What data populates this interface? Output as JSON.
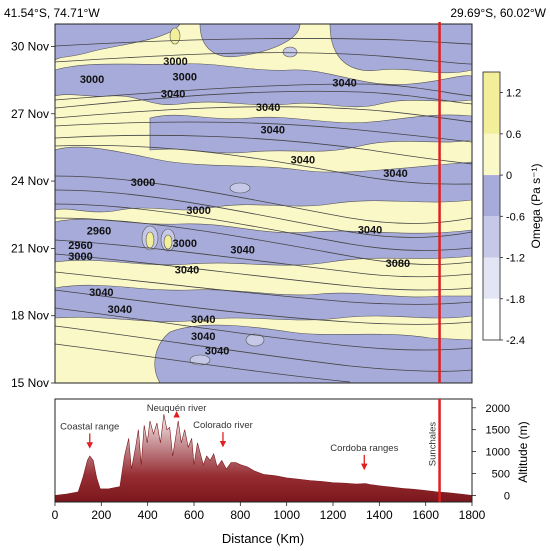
{
  "chart_data": [
    {
      "type": "heatmap",
      "corner_left_label": "41.54°S, 74.71°W",
      "corner_right_label": "29.69°S, 60.02°W",
      "x_range_km": [
        0,
        1800
      ],
      "y_ticks": [
        "15 Nov",
        "18 Nov",
        "21 Nov",
        "24 Nov",
        "27 Nov",
        "30 Nov"
      ],
      "y_range_days_nov": [
        15,
        31
      ],
      "colorbar": {
        "label": "Omega (Pa s⁻¹)",
        "ticks": [
          "1.2",
          "0.6",
          "0",
          "-0.6",
          "-1.2",
          "-1.8",
          "-2.4"
        ],
        "tick_values": [
          1.2,
          0.6,
          0,
          -0.6,
          -1.2,
          -1.8,
          -2.4
        ],
        "bands": [
          {
            "from": 0.6,
            "to": 1.5,
            "color": "#f2ee9a"
          },
          {
            "from": 0,
            "to": 0.6,
            "color": "#fbf8c8"
          },
          {
            "from": -0.6,
            "to": 0,
            "color": "#a7abd9"
          },
          {
            "from": -1.2,
            "to": -0.6,
            "color": "#c6c8e7"
          },
          {
            "from": -1.8,
            "to": -1.2,
            "color": "#e4e5f4"
          },
          {
            "from": -2.4,
            "to": -1.8,
            "color": "#ffffff"
          }
        ]
      },
      "colors": {
        "positive": "#fbf8c8",
        "negative": "#a7abd9",
        "strong_negative": "#c6c8e7",
        "transect": "#e02020",
        "contour": "#444444"
      },
      "contour_labels": [
        {
          "text": "3000",
          "x_km": 520,
          "y_day": 29.35
        },
        {
          "text": "3000",
          "x_km": 160,
          "y_day": 28.55
        },
        {
          "text": "3000",
          "x_km": 560,
          "y_day": 28.65
        },
        {
          "text": "3040",
          "x_km": 1250,
          "y_day": 28.4
        },
        {
          "text": "3040",
          "x_km": 510,
          "y_day": 27.9
        },
        {
          "text": "3040",
          "x_km": 920,
          "y_day": 27.3
        },
        {
          "text": "3040",
          "x_km": 940,
          "y_day": 26.3
        },
        {
          "text": "3040",
          "x_km": 1070,
          "y_day": 24.95
        },
        {
          "text": "3040",
          "x_km": 1470,
          "y_day": 24.35
        },
        {
          "text": "3000",
          "x_km": 380,
          "y_day": 23.95
        },
        {
          "text": "3000",
          "x_km": 620,
          "y_day": 22.7
        },
        {
          "text": "2960",
          "x_km": 190,
          "y_day": 21.8
        },
        {
          "text": "2960",
          "x_km": 110,
          "y_day": 21.15
        },
        {
          "text": "3000",
          "x_km": 110,
          "y_day": 20.65
        },
        {
          "text": "3000",
          "x_km": 560,
          "y_day": 21.25
        },
        {
          "text": "3040",
          "x_km": 810,
          "y_day": 20.95
        },
        {
          "text": "3040",
          "x_km": 1360,
          "y_day": 21.85
        },
        {
          "text": "3080",
          "x_km": 1480,
          "y_day": 20.35
        },
        {
          "text": "3040",
          "x_km": 570,
          "y_day": 20.05
        },
        {
          "text": "3040",
          "x_km": 200,
          "y_day": 19.05
        },
        {
          "text": "3040",
          "x_km": 280,
          "y_day": 18.3
        },
        {
          "text": "3040",
          "x_km": 640,
          "y_day": 17.85
        },
        {
          "text": "3040",
          "x_km": 640,
          "y_day": 17.1
        },
        {
          "text": "3040",
          "x_km": 700,
          "y_day": 16.45
        }
      ],
      "transect_x_km": 1660
    },
    {
      "type": "area",
      "x_ticks": [
        0,
        200,
        400,
        600,
        800,
        1000,
        1200,
        1400,
        1600,
        1800
      ],
      "xlabel": "Distance (Km)",
      "ylabel": "Altitude (m)",
      "y_ticks": [
        0,
        500,
        1000,
        1500,
        2000
      ],
      "ylim": [
        -150,
        2200
      ],
      "xlim": [
        0,
        1800
      ],
      "profile": {
        "x": [
          0,
          50,
          100,
          120,
          140,
          150,
          165,
          180,
          195,
          230,
          260,
          280,
          300,
          318,
          330,
          348,
          360,
          372,
          385,
          398,
          410,
          425,
          440,
          455,
          470,
          483,
          495,
          508,
          520,
          532,
          545,
          560,
          575,
          590,
          600,
          615,
          625,
          640,
          655,
          670,
          685,
          700,
          720,
          740,
          760,
          780,
          800,
          830,
          860,
          900,
          950,
          1000,
          1050,
          1100,
          1150,
          1200,
          1250,
          1300,
          1340,
          1360,
          1400,
          1450,
          1500,
          1550,
          1600,
          1650,
          1700,
          1750,
          1800
        ],
        "y": [
          0,
          30,
          80,
          400,
          800,
          900,
          800,
          400,
          150,
          150,
          180,
          200,
          900,
          1300,
          600,
          1100,
          1500,
          700,
          1600,
          1200,
          1700,
          1400,
          1650,
          1200,
          1850,
          1500,
          1550,
          900,
          1300,
          1700,
          1200,
          1500,
          1100,
          1300,
          700,
          1200,
          1000,
          700,
          900,
          800,
          950,
          650,
          800,
          600,
          750,
          750,
          700,
          650,
          560,
          480,
          450,
          400,
          370,
          340,
          320,
          290,
          280,
          260,
          270,
          250,
          220,
          190,
          160,
          140,
          110,
          80,
          60,
          30,
          0
        ]
      },
      "annotations": [
        {
          "text": "Coastal range",
          "x_km": 150,
          "arrow_tip_alt": 1050
        },
        {
          "text": "Neuquén river",
          "x_km": 525,
          "arrow_tip_alt": 1850
        },
        {
          "text": "Colorado river",
          "x_km": 725,
          "arrow_tip_alt": 1080
        },
        {
          "text": "Cordoba ranges",
          "x_km": 1335,
          "arrow_tip_alt": 560
        },
        {
          "text": "Sunchales",
          "x_km": 1650,
          "arrow_tip_alt": null
        }
      ],
      "colors": {
        "fill_top": "#f3e9ea",
        "fill_bottom": "#7d1a1e",
        "ocean": "#5ab4d8",
        "transect": "#e02020"
      }
    }
  ]
}
